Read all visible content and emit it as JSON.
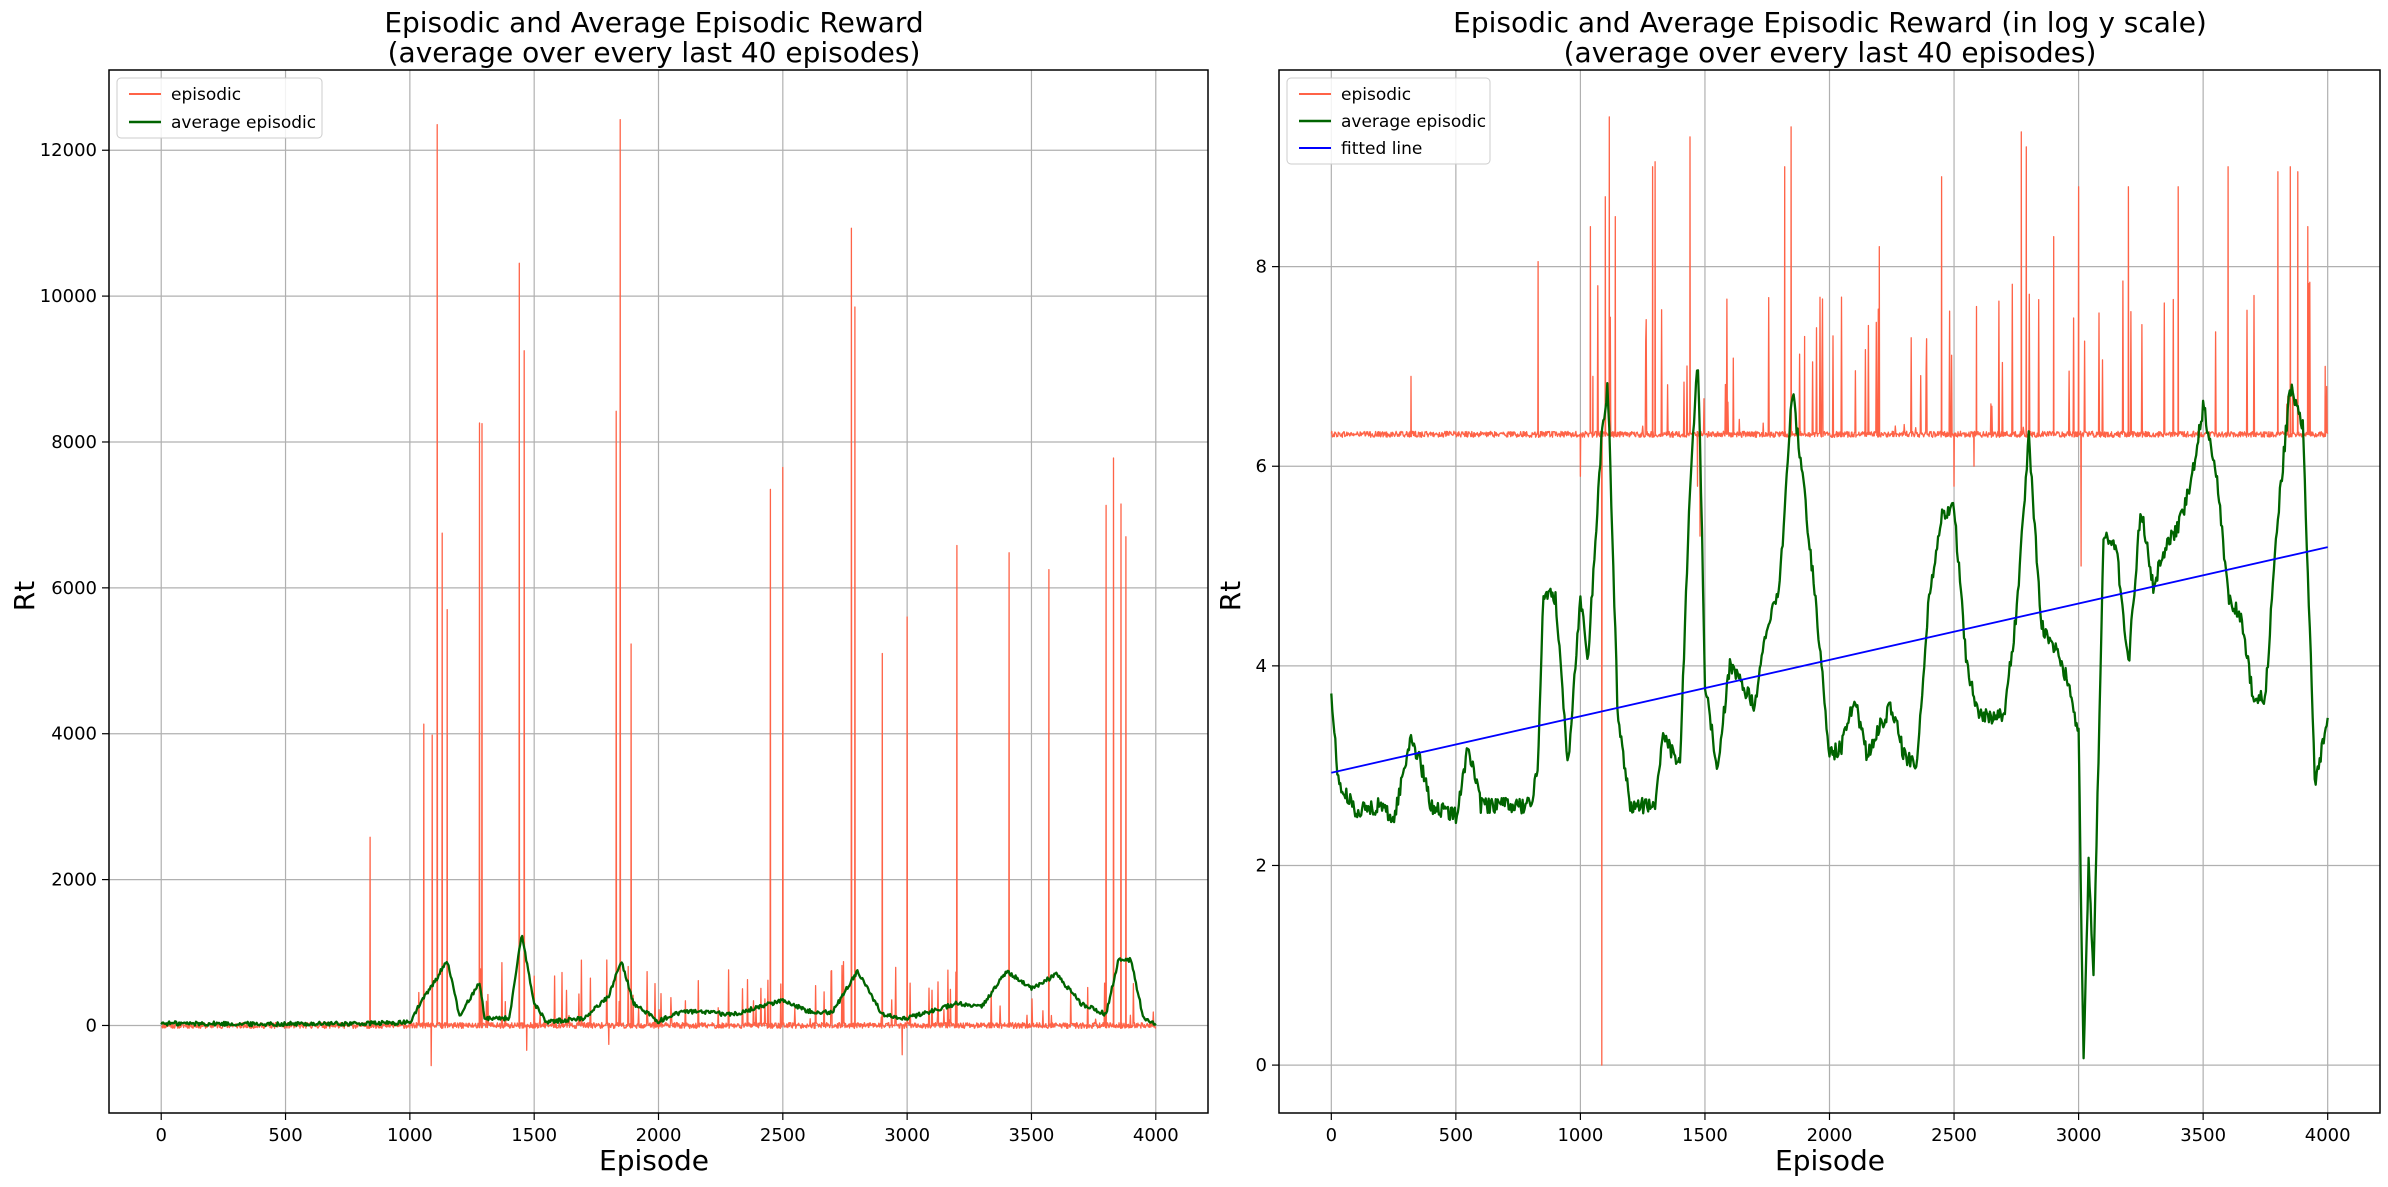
{
  "chart_data": [
    {
      "type": "line",
      "title_line1": "Episodic and Average Episodic Reward",
      "title_line2": "(average over every last 40 episodes)",
      "xlabel": "Episode",
      "ylabel": "Rt",
      "xlim": [
        -210,
        4210
      ],
      "ylim": [
        -1200,
        13100
      ],
      "x_ticks": [
        0,
        500,
        1000,
        1500,
        2000,
        2500,
        3000,
        3500,
        4000
      ],
      "y_ticks": [
        0,
        2000,
        4000,
        6000,
        8000,
        10000,
        12000
      ],
      "grid": true,
      "legend_position": "top-left",
      "series": [
        {
          "name": "episodic",
          "color": "#ff6347",
          "style": "spiky",
          "base": 0,
          "noise": 40,
          "spikes": [
            [
              840,
              2580
            ],
            [
              1055,
              4130
            ],
            [
              1090,
              3980
            ],
            [
              1110,
              12350
            ],
            [
              1130,
              6750
            ],
            [
              1150,
              5700
            ],
            [
              1280,
              8260
            ],
            [
              1290,
              8250
            ],
            [
              1440,
              10450
            ],
            [
              1460,
              9250
            ],
            [
              1470,
              9150
            ],
            [
              1830,
              8420
            ],
            [
              1845,
              12420
            ],
            [
              1890,
              5230
            ],
            [
              2450,
              7350
            ],
            [
              2500,
              7650
            ],
            [
              2775,
              10930
            ],
            [
              2790,
              9850
            ],
            [
              2900,
              5100
            ],
            [
              3000,
              5600
            ],
            [
              3200,
              6580
            ],
            [
              3410,
              6480
            ],
            [
              3570,
              6250
            ],
            [
              3800,
              7130
            ],
            [
              3830,
              7780
            ],
            [
              3860,
              7150
            ],
            [
              3880,
              6700
            ],
            [
              1085,
              -550
            ],
            [
              1470,
              -340
            ],
            [
              1800,
              -260
            ],
            [
              2980,
              -400
            ]
          ]
        },
        {
          "name": "average episodic",
          "color": "#006400",
          "style": "piecewise",
          "points": [
            [
              0,
              30
            ],
            [
              400,
              20
            ],
            [
              800,
              25
            ],
            [
              1000,
              40
            ],
            [
              1050,
              350
            ],
            [
              1100,
              600
            ],
            [
              1150,
              900
            ],
            [
              1200,
              120
            ],
            [
              1280,
              600
            ],
            [
              1300,
              100
            ],
            [
              1400,
              100
            ],
            [
              1450,
              1250
            ],
            [
              1500,
              300
            ],
            [
              1550,
              50
            ],
            [
              1700,
              100
            ],
            [
              1800,
              400
            ],
            [
              1850,
              900
            ],
            [
              1900,
              300
            ],
            [
              2000,
              60
            ],
            [
              2100,
              200
            ],
            [
              2300,
              150
            ],
            [
              2500,
              350
            ],
            [
              2600,
              200
            ],
            [
              2700,
              180
            ],
            [
              2800,
              750
            ],
            [
              2900,
              150
            ],
            [
              3000,
              100
            ],
            [
              3100,
              200
            ],
            [
              3200,
              300
            ],
            [
              3300,
              250
            ],
            [
              3400,
              750
            ],
            [
              3500,
              500
            ],
            [
              3600,
              700
            ],
            [
              3700,
              300
            ],
            [
              3800,
              150
            ],
            [
              3850,
              900
            ],
            [
              3900,
              900
            ],
            [
              3950,
              100
            ],
            [
              4000,
              30
            ]
          ],
          "noise": 30
        }
      ]
    },
    {
      "type": "line",
      "title_line1": "Episodic and Average Episodic Reward (in log y scale)",
      "title_line2": "(average over every last 40 episodes)",
      "xlabel": "Episode",
      "ylabel": "Rt",
      "xlim": [
        -210,
        4210
      ],
      "ylim": [
        -0.48,
        9.97
      ],
      "x_ticks": [
        0,
        500,
        1000,
        1500,
        2000,
        2500,
        3000,
        3500,
        4000
      ],
      "y_ticks": [
        0,
        2,
        4,
        6,
        8
      ],
      "grid": true,
      "legend_position": "top-left",
      "series": [
        {
          "name": "episodic",
          "color": "#ff6347",
          "style": "spiky",
          "base": 6.32,
          "noise": 0.03,
          "spikes": [
            [
              320,
              6.9
            ],
            [
              830,
              8.05
            ],
            [
              1040,
              8.4
            ],
            [
              1050,
              6.9
            ],
            [
              1085,
              0.0
            ],
            [
              1100,
              8.7
            ],
            [
              1115,
              9.5
            ],
            [
              1140,
              8.5
            ],
            [
              1290,
              9.0
            ],
            [
              1300,
              9.05
            ],
            [
              1440,
              9.3
            ],
            [
              1470,
              9.2
            ],
            [
              1480,
              5.3
            ],
            [
              1820,
              9.0
            ],
            [
              1845,
              9.4
            ],
            [
              1900,
              7.3
            ],
            [
              2200,
              8.2
            ],
            [
              2450,
              8.9
            ],
            [
              2500,
              9.0
            ],
            [
              2590,
              7.6
            ],
            [
              2770,
              9.35
            ],
            [
              2790,
              9.2
            ],
            [
              2900,
              8.3
            ],
            [
              3000,
              8.8
            ],
            [
              3010,
              5.0
            ],
            [
              3200,
              8.8
            ],
            [
              3400,
              8.8
            ],
            [
              3600,
              9.0
            ],
            [
              3800,
              8.95
            ],
            [
              3850,
              9.0
            ],
            [
              3880,
              8.95
            ],
            [
              3920,
              8.4
            ],
            [
              3990,
              7.0
            ],
            [
              1000,
              5.9
            ],
            [
              1470,
              5.8
            ],
            [
              2500,
              5.8
            ],
            [
              2580,
              6.0
            ]
          ]
        },
        {
          "name": "average episodic",
          "color": "#006400",
          "style": "piecewise",
          "points": [
            [
              0,
              3.7
            ],
            [
              30,
              2.8
            ],
            [
              100,
              2.55
            ],
            [
              200,
              2.6
            ],
            [
              250,
              2.45
            ],
            [
              320,
              3.3
            ],
            [
              360,
              3.0
            ],
            [
              400,
              2.6
            ],
            [
              500,
              2.5
            ],
            [
              550,
              3.2
            ],
            [
              600,
              2.6
            ],
            [
              800,
              2.6
            ],
            [
              830,
              3.0
            ],
            [
              850,
              4.7
            ],
            [
              900,
              4.7
            ],
            [
              950,
              3.0
            ],
            [
              1000,
              4.7
            ],
            [
              1030,
              4.1
            ],
            [
              1060,
              5.2
            ],
            [
              1085,
              6.3
            ],
            [
              1110,
              6.8
            ],
            [
              1150,
              3.5
            ],
            [
              1200,
              2.6
            ],
            [
              1300,
              2.6
            ],
            [
              1330,
              3.3
            ],
            [
              1400,
              3.0
            ],
            [
              1440,
              5.8
            ],
            [
              1470,
              7.1
            ],
            [
              1480,
              6.3
            ],
            [
              1500,
              3.8
            ],
            [
              1550,
              3.0
            ],
            [
              1600,
              4.0
            ],
            [
              1700,
              3.6
            ],
            [
              1750,
              4.4
            ],
            [
              1800,
              4.8
            ],
            [
              1850,
              6.8
            ],
            [
              1900,
              5.7
            ],
            [
              1950,
              4.5
            ],
            [
              2000,
              3.1
            ],
            [
              2050,
              3.2
            ],
            [
              2100,
              3.7
            ],
            [
              2150,
              3.1
            ],
            [
              2200,
              3.4
            ],
            [
              2250,
              3.6
            ],
            [
              2300,
              3.1
            ],
            [
              2350,
              3.0
            ],
            [
              2400,
              4.7
            ],
            [
              2450,
              5.5
            ],
            [
              2500,
              5.6
            ],
            [
              2550,
              4.0
            ],
            [
              2600,
              3.5
            ],
            [
              2700,
              3.5
            ],
            [
              2750,
              4.5
            ],
            [
              2800,
              6.3
            ],
            [
              2850,
              4.4
            ],
            [
              2900,
              4.2
            ],
            [
              2950,
              3.9
            ],
            [
              3000,
              3.3
            ],
            [
              3020,
              0.0
            ],
            [
              3040,
              2.0
            ],
            [
              3060,
              0.9
            ],
            [
              3100,
              5.3
            ],
            [
              3150,
              5.2
            ],
            [
              3200,
              4.0
            ],
            [
              3250,
              5.6
            ],
            [
              3300,
              4.8
            ],
            [
              3350,
              5.2
            ],
            [
              3400,
              5.4
            ],
            [
              3450,
              5.8
            ],
            [
              3500,
              6.6
            ],
            [
              3550,
              6.0
            ],
            [
              3600,
              4.7
            ],
            [
              3650,
              4.5
            ],
            [
              3700,
              3.7
            ],
            [
              3750,
              3.7
            ],
            [
              3800,
              5.5
            ],
            [
              3850,
              6.8
            ],
            [
              3900,
              6.4
            ],
            [
              3950,
              2.8
            ],
            [
              4000,
              3.5
            ]
          ],
          "noise": 0.08
        },
        {
          "name": "fitted line",
          "color": "#0000ff",
          "style": "linear",
          "points": [
            [
              0,
              2.93
            ],
            [
              4000,
              5.19
            ]
          ]
        }
      ]
    }
  ]
}
